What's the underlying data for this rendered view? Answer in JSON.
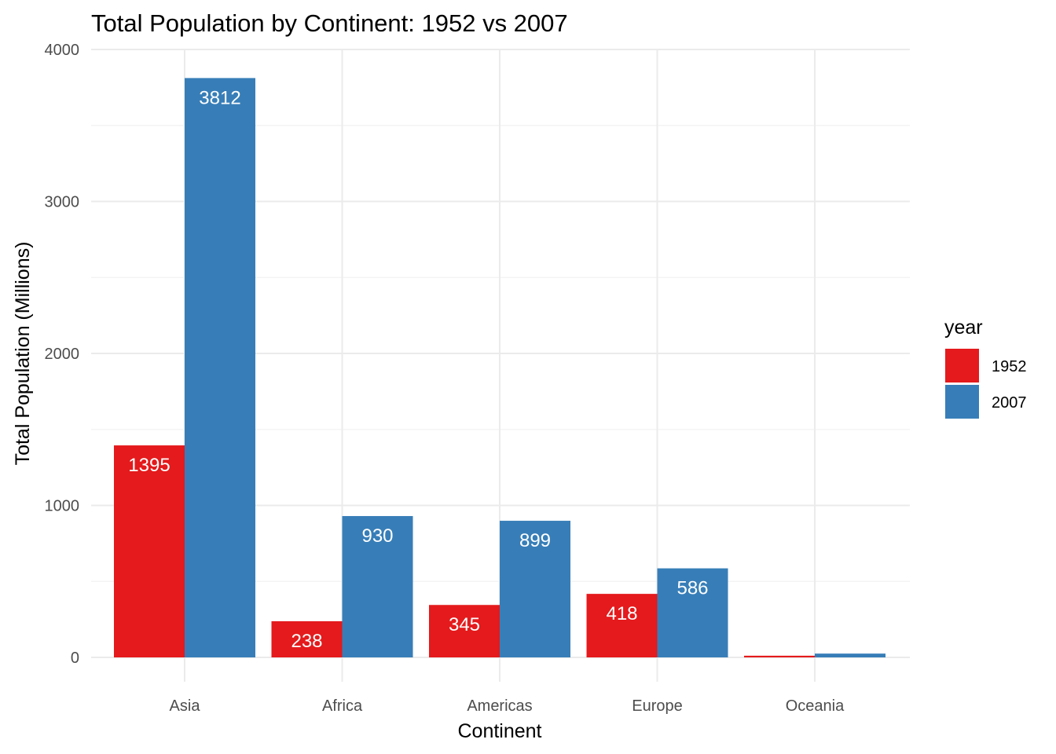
{
  "chart_data": {
    "type": "bar",
    "title": "Total Population by Continent: 1952 vs 2007",
    "xlabel": "Continent",
    "ylabel": "Total Population (Millions)",
    "categories": [
      "Asia",
      "Africa",
      "Americas",
      "Europe",
      "Oceania"
    ],
    "series": [
      {
        "name": "1952",
        "color": "#e41a1c",
        "values": [
          1395,
          238,
          345,
          418,
          11
        ],
        "labels": [
          "1395",
          "238",
          "345",
          "418",
          ""
        ]
      },
      {
        "name": "2007",
        "color": "#377eb8",
        "values": [
          3812,
          930,
          899,
          586,
          25
        ],
        "labels": [
          "3812",
          "930",
          "899",
          "586",
          ""
        ]
      }
    ],
    "ylim": [
      0,
      4000
    ],
    "yticks": [
      0,
      1000,
      2000,
      3000,
      4000
    ],
    "grid": true,
    "legend": {
      "title": "year",
      "position": "right"
    }
  }
}
